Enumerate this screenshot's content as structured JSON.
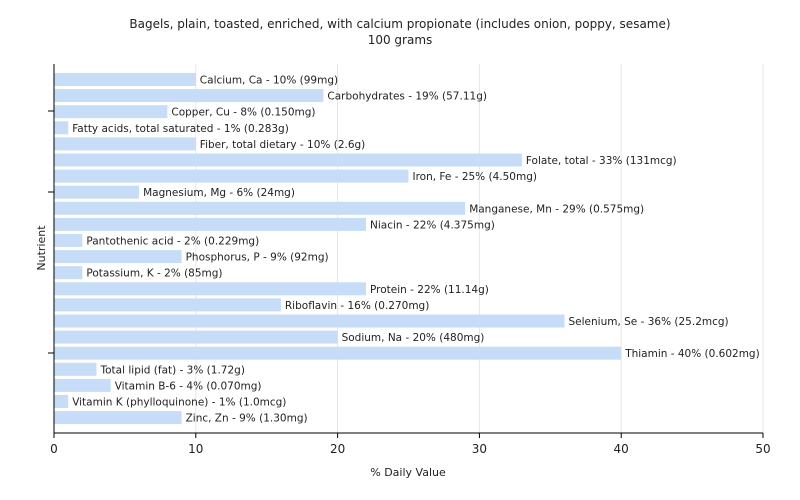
{
  "chart_data": {
    "type": "bar",
    "orientation": "horizontal",
    "title": "Bagels, plain, toasted, enriched, with calcium propionate (includes onion, poppy, sesame)",
    "subtitle": "100 grams",
    "xlabel": "% Daily Value",
    "ylabel": "Nutrient",
    "xlim": [
      0,
      50
    ],
    "xticks": [
      0,
      10,
      20,
      30,
      40,
      50
    ],
    "grid": true,
    "bar_color": "#c6dcf7",
    "categories": [
      "Calcium, Ca",
      "Carbohydrates",
      "Copper, Cu",
      "Fatty acids, total saturated",
      "Fiber, total dietary",
      "Folate, total",
      "Iron, Fe",
      "Magnesium, Mg",
      "Manganese, Mn",
      "Niacin",
      "Pantothenic acid",
      "Phosphorus, P",
      "Potassium, K",
      "Protein",
      "Riboflavin",
      "Selenium, Se",
      "Sodium, Na",
      "Thiamin",
      "Total lipid (fat)",
      "Vitamin B-6",
      "Vitamin K (phylloquinone)",
      "Zinc, Zn"
    ],
    "values": [
      10,
      19,
      8,
      1,
      10,
      33,
      25,
      6,
      29,
      22,
      2,
      9,
      2,
      22,
      16,
      36,
      20,
      40,
      3,
      4,
      1,
      9
    ],
    "data_labels": [
      "Calcium, Ca - 10% (99mg)",
      "Carbohydrates - 19% (57.11g)",
      "Copper, Cu - 8% (0.150mg)",
      "Fatty acids, total saturated - 1% (0.283g)",
      "Fiber, total dietary - 10% (2.6g)",
      "Folate, total - 33% (131mcg)",
      "Iron, Fe - 25% (4.50mg)",
      "Magnesium, Mg - 6% (24mg)",
      "Manganese, Mn - 29% (0.575mg)",
      "Niacin - 22% (4.375mg)",
      "Pantothenic acid - 2% (0.229mg)",
      "Phosphorus, P - 9% (92mg)",
      "Potassium, K - 2% (85mg)",
      "Protein - 22% (11.14g)",
      "Riboflavin - 16% (0.270mg)",
      "Selenium, Se - 36% (25.2mcg)",
      "Sodium, Na - 20% (480mg)",
      "Thiamin - 40% (0.602mg)",
      "Total lipid (fat) - 3% (1.72g)",
      "Vitamin B-6 - 4% (0.070mg)",
      "Vitamin K (phylloquinone) - 1% (1.0mcg)",
      "Zinc, Zn - 9% (1.30mg)"
    ]
  }
}
